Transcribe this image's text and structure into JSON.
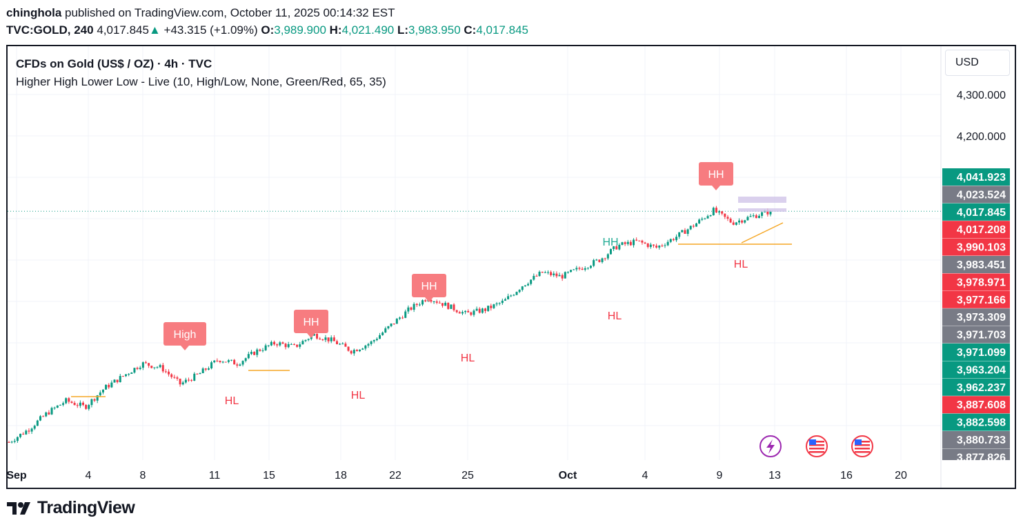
{
  "header": {
    "user": "chinghola",
    "published": " published on TradingView.com, October 11, 2025 00:14:32 EST",
    "symbol": "TVC:GOLD, 240",
    "price": "4,017.845",
    "arrow": "▲",
    "change": "+43.315 (+1.09%)",
    "o_label": "O:",
    "o_value": "3,989.900",
    "h_label": "H:",
    "h_value": "4,021.490",
    "l_label": "L:",
    "l_value": "3,983.950",
    "c_label": "C:",
    "c_value": "4,017.845"
  },
  "legend": {
    "title": "CFDs on Gold (US$ / OZ) · 4h · TVC",
    "indicator": "Higher High Lower Low - Live (10, High/Low, None, Green/Red, 65, 35)"
  },
  "currency_button": "USD",
  "footer": {
    "brand": "TradingView"
  },
  "colors": {
    "up": "#089981",
    "down": "#f23645",
    "label_red": "#f77c80",
    "hh_green": "#22ab94",
    "grey_badge": "#787b86",
    "level": "#f5a623"
  },
  "chart_data": {
    "type": "candlestick",
    "title": "CFDs on Gold (US$ / OZ) · 4h · TVC",
    "y_axis_ticks": [
      "4,300.000",
      "4,200.000"
    ],
    "x_axis_ticks": [
      "Sep",
      "4",
      "8",
      "11",
      "15",
      "18",
      "22",
      "25",
      "Oct",
      "4",
      "9",
      "13",
      "16",
      "20"
    ],
    "price_badges": [
      {
        "value": "4,041.923",
        "color": "green"
      },
      {
        "value": "4,023.524",
        "color": "grey"
      },
      {
        "value": "4,017.845",
        "color": "green"
      },
      {
        "value": "4,017.208",
        "color": "red"
      },
      {
        "value": "3,990.103",
        "color": "red"
      },
      {
        "value": "3,983.451",
        "color": "grey"
      },
      {
        "value": "3,978.971",
        "color": "red"
      },
      {
        "value": "3,977.166",
        "color": "red"
      },
      {
        "value": "3,973.309",
        "color": "grey"
      },
      {
        "value": "3,971.703",
        "color": "grey"
      },
      {
        "value": "3,971.099",
        "color": "green"
      },
      {
        "value": "3,963.204",
        "color": "green"
      },
      {
        "value": "3,962.237",
        "color": "green"
      },
      {
        "value": "3,887.608",
        "color": "red"
      },
      {
        "value": "3,882.598",
        "color": "green"
      },
      {
        "value": "3,880.733",
        "color": "grey"
      },
      {
        "value": "3,877.826",
        "color": "grey"
      }
    ],
    "swing_labels": [
      {
        "text": "High",
        "style": "badge"
      },
      {
        "text": "HH",
        "style": "badge"
      },
      {
        "text": "HH",
        "style": "badge"
      },
      {
        "text": "HH",
        "style": "badge"
      },
      {
        "text": "HH",
        "style": "green-text"
      },
      {
        "text": "HL",
        "style": "red-text"
      },
      {
        "text": "HL",
        "style": "red-text"
      },
      {
        "text": "HL",
        "style": "red-text"
      },
      {
        "text": "HL",
        "style": "red-text"
      },
      {
        "text": "HL",
        "style": "red-text"
      }
    ],
    "price_path": [
      3460,
      3490,
      3530,
      3560,
      3545,
      3590,
      3620,
      3650,
      3640,
      3600,
      3625,
      3660,
      3650,
      3680,
      3700,
      3690,
      3720,
      3705,
      3680,
      3700,
      3740,
      3780,
      3810,
      3790,
      3770,
      3780,
      3800,
      3840,
      3870,
      3860,
      3880,
      3900,
      3935,
      3945,
      3930,
      3955,
      3985,
      4020,
      3990,
      4005,
      4017.845
    ],
    "last_price": 4017.845
  }
}
